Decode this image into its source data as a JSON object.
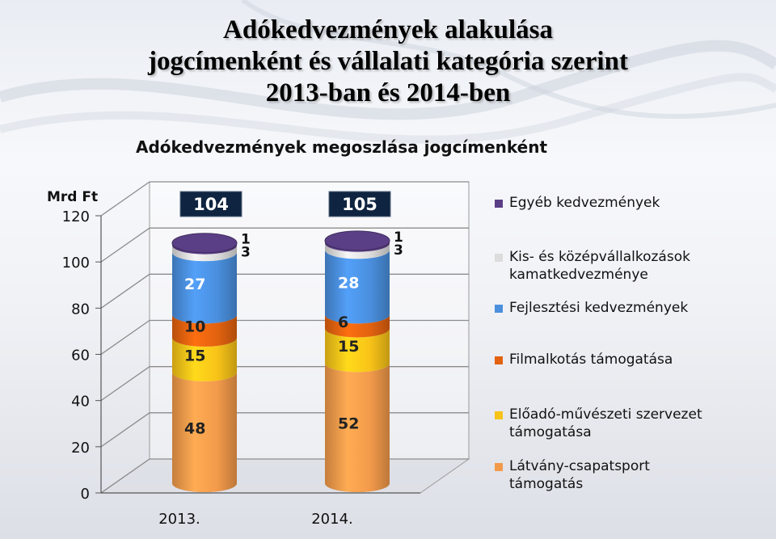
{
  "slide": {
    "title_lines": [
      "Adókedvezmények  alakulása",
      "jogcímenként és vállalati kategória szerint",
      "2013-ban és 2014-ben"
    ]
  },
  "chart_data": {
    "type": "bar",
    "stacked": true,
    "title": "Adókedvezmények megoszlása jogcímenként",
    "ylabel": "Mrd Ft",
    "ylim": [
      0,
      120
    ],
    "yticks": [
      "0",
      "20",
      "40",
      "60",
      "80",
      "100",
      "120"
    ],
    "categories": [
      "2013.",
      "2014."
    ],
    "totals": [
      "104",
      "105"
    ],
    "series": [
      {
        "name": "Látvány-csapatsport támogatás",
        "values": [
          48,
          52
        ],
        "labels": [
          "48",
          "52"
        ],
        "color": "#f29a4a"
      },
      {
        "name": "Előadó-művészeti szervezet támogatása",
        "values": [
          15,
          15
        ],
        "labels": [
          "15",
          "15"
        ],
        "color": "#f8c318"
      },
      {
        "name": "Filmalkotás támogatása",
        "values": [
          10,
          6
        ],
        "labels": [
          "10",
          "6"
        ],
        "color": "#e2620f"
      },
      {
        "name": "Fejlesztési kedvezmények",
        "values": [
          27,
          28
        ],
        "labels": [
          "27",
          "28"
        ],
        "color": "#4a8fde"
      },
      {
        "name": "Kis- és középvállalkozások kamatkedvezménye",
        "values": [
          3,
          3
        ],
        "labels": [
          "3",
          "3"
        ],
        "color": "#dcdcdc"
      },
      {
        "name": "Egyéb kedvezmények",
        "values": [
          1,
          1
        ],
        "labels": [
          "1",
          "1"
        ],
        "color": "#5b3f86"
      }
    ],
    "legend_order": [
      5,
      4,
      3,
      2,
      1,
      0
    ],
    "legend_position": "right",
    "grid": true
  }
}
